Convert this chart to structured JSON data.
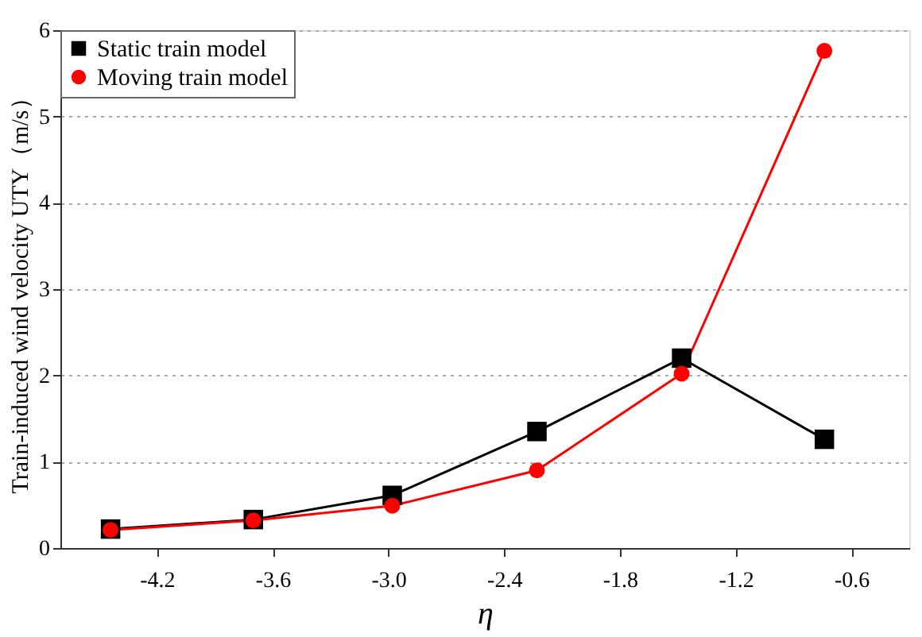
{
  "chart_data": {
    "type": "line",
    "xlabel": "η",
    "ylabel": "Train-induced wind velocity UTY（m/s）",
    "x": [
      -4.44,
      -3.7,
      -2.98,
      -2.23,
      -1.48,
      -0.74
    ],
    "series": [
      {
        "name": "Static train model",
        "color": "#000000",
        "marker": "square",
        "values": [
          0.22,
          0.33,
          0.61,
          1.35,
          2.2,
          1.26
        ]
      },
      {
        "name": "Moving train model",
        "color": "#ff0000",
        "marker": "circle",
        "values": [
          0.21,
          0.32,
          0.49,
          0.9,
          2.02,
          5.76
        ]
      }
    ],
    "xlim": [
      -4.7,
      -0.3
    ],
    "xticks": [
      {
        "value": -4.2,
        "label": "-4.2"
      },
      {
        "value": -3.6,
        "label": "-3.6"
      },
      {
        "value": -3.0,
        "label": "-3.0"
      },
      {
        "value": -2.4,
        "label": "-2.4"
      },
      {
        "value": -1.8,
        "label": "-1.8"
      },
      {
        "value": -1.2,
        "label": "-1.2"
      },
      {
        "value": -0.6,
        "label": "-0.6"
      }
    ],
    "ylim": [
      0,
      6
    ],
    "yticks": [
      0,
      1,
      2,
      3,
      4,
      5,
      6
    ],
    "grid": "y",
    "legend": "top left",
    "line_style": "solid"
  }
}
